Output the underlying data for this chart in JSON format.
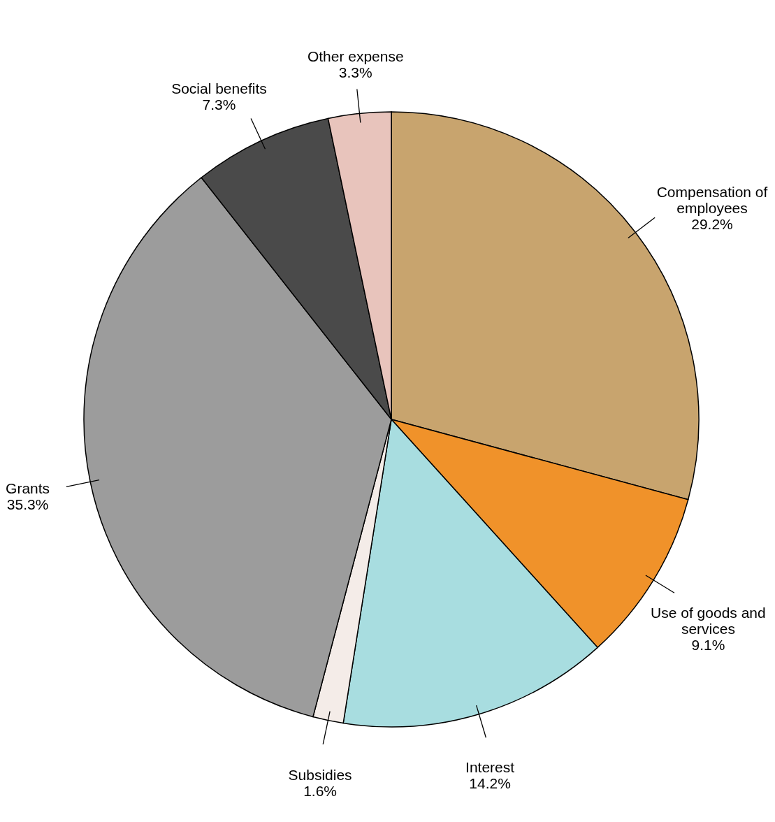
{
  "chart_data": {
    "type": "pie",
    "categories": [
      "Compensation of employees",
      "Use of goods and services",
      "Interest",
      "Subsidies",
      "Grants",
      "Social benefits",
      "Other expense"
    ],
    "values": [
      29.2,
      9.1,
      14.2,
      1.6,
      35.3,
      7.3,
      3.3
    ],
    "value_labels": [
      "29.2%",
      "9.1%",
      "14.2%",
      "1.6%",
      "35.3%",
      "7.3%",
      "3.3%"
    ],
    "colors": [
      "#c8a46e",
      "#f0922a",
      "#a8dde0",
      "#f4ece8",
      "#9c9c9c",
      "#4a4a4a",
      "#e8c4bc"
    ]
  }
}
